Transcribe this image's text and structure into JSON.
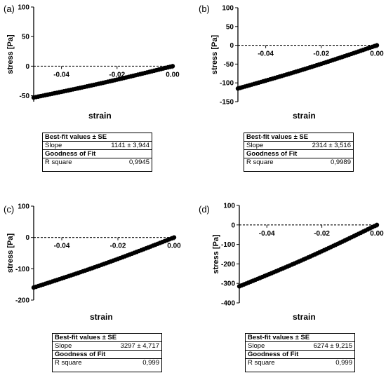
{
  "chart_data": [
    {
      "panel": "(a)",
      "type": "scatter",
      "xlabel": "strain",
      "ylabel": "stress [Pa]",
      "xlim": [
        -0.05,
        0.0
      ],
      "ylim": [
        -60,
        100
      ],
      "yticks": [
        -50,
        0,
        50,
        100
      ],
      "xticks": [
        -0.04,
        -0.02,
        0.0
      ],
      "ytick_labels": [
        "-50",
        "0",
        "50",
        "100"
      ],
      "xtick_labels": [
        "-0.04",
        "-0.02",
        "0.00"
      ],
      "x": [
        -0.05,
        0.0
      ],
      "y": [
        -53,
        0
      ],
      "fit": {
        "header1": "Best-fit values ± SE",
        "slope_label": "Slope",
        "slope_value": "1141 ± 3,944",
        "header2": "Goodness of Fit",
        "r2_label": "R square",
        "r2_value": "0,9945"
      }
    },
    {
      "panel": "(b)",
      "type": "scatter",
      "xlabel": "strain",
      "ylabel": "stress [Pa]",
      "xlim": [
        -0.05,
        0.0
      ],
      "ylim": [
        -150,
        100
      ],
      "yticks": [
        -150,
        -100,
        -50,
        0,
        50,
        100
      ],
      "xticks": [
        -0.04,
        -0.02,
        0.0
      ],
      "ytick_labels": [
        "-150",
        "-100",
        "-50",
        "0",
        "50",
        "100"
      ],
      "xtick_labels": [
        "-0.04",
        "-0.02",
        "0.00"
      ],
      "x": [
        -0.05,
        0.0
      ],
      "y": [
        -115,
        0
      ],
      "fit": {
        "header1": "Best-fit values ± SE",
        "slope_label": "Slope",
        "slope_value": "2314 ± 3,516",
        "header2": "Goodness of Fit",
        "r2_label": "R square",
        "r2_value": "0,9989"
      }
    },
    {
      "panel": "(c)",
      "type": "scatter",
      "xlabel": "strain",
      "ylabel": "stress [Pa]",
      "xlim": [
        -0.05,
        0.0
      ],
      "ylim": [
        -200,
        100
      ],
      "yticks": [
        -200,
        -100,
        0,
        100
      ],
      "xticks": [
        -0.04,
        -0.02,
        0.0
      ],
      "ytick_labels": [
        "-200",
        "-100",
        "0",
        "100"
      ],
      "xtick_labels": [
        "-0.04",
        "-0.02",
        "0.00"
      ],
      "x": [
        -0.05,
        0.0
      ],
      "y": [
        -160,
        0
      ],
      "fit": {
        "header1": "Best-fit values ± SE",
        "slope_label": "Slope",
        "slope_value": "3297 ± 4,717",
        "header2": "Goodness of Fit",
        "r2_label": "R square",
        "r2_value": "0,999"
      }
    },
    {
      "panel": "(d)",
      "type": "scatter",
      "xlabel": "strain",
      "ylabel": "stress [Pa]",
      "xlim": [
        -0.05,
        0.0
      ],
      "ylim": [
        -400,
        100
      ],
      "yticks": [
        -400,
        -300,
        -200,
        -100,
        0,
        100
      ],
      "xticks": [
        -0.04,
        -0.02,
        0.0
      ],
      "ytick_labels": [
        "-400",
        "-300",
        "-200",
        "-100",
        "0",
        "100"
      ],
      "xtick_labels": [
        "-0.04",
        "-0.02",
        "0.00"
      ],
      "x": [
        -0.05,
        0.0
      ],
      "y": [
        -315,
        0
      ],
      "fit": {
        "header1": "Best-fit values ± SE",
        "slope_label": "Slope",
        "slope_value": "6274 ± 9,215",
        "header2": "Goodness of Fit",
        "r2_label": "R square",
        "r2_value": "0,999"
      }
    }
  ]
}
